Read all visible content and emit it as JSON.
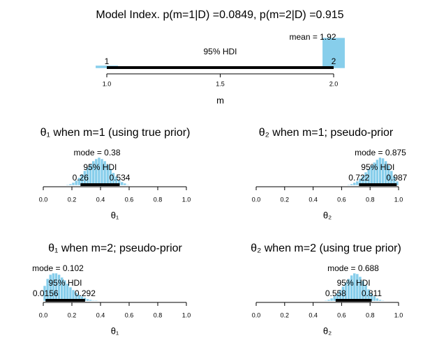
{
  "chart_data": [
    {
      "type": "histogram",
      "title": "Model Index. p(m=1|D) =0.0849, p(m=2|D) =0.915",
      "xlabel": "m",
      "bins": [
        0.95,
        1.05,
        1.15,
        1.25,
        1.35,
        1.45,
        1.55,
        1.65,
        1.75,
        1.85,
        1.95,
        2.05
      ],
      "counts": [
        0.0849,
        0,
        0,
        0,
        0,
        0,
        0,
        0,
        0,
        0,
        0.915
      ],
      "color": "#87ceeb",
      "xlim": [
        1,
        2
      ],
      "xticks": [
        {
          "value": 1,
          "label": "1.0"
        },
        1.5,
        {
          "value": 2,
          "label": "2.0"
        }
      ],
      "ylim": [
        0,
        1
      ],
      "hdi": [
        1,
        2
      ],
      "hdi_label": "95% HDI",
      "center_label": "mean = 1.92"
    },
    {
      "type": "histogram",
      "title": "θ₁ when m=1 (using true prior)",
      "xlabel": "θ₁",
      "bins": [
        0.16,
        0.18,
        0.2,
        0.22,
        0.24,
        0.26,
        0.28,
        0.3,
        0.32,
        0.34,
        0.36,
        0.38,
        0.4,
        0.42,
        0.44,
        0.46,
        0.48,
        0.5,
        0.52,
        0.54,
        0.56,
        0.58,
        0.6
      ],
      "counts": [
        1,
        2,
        4,
        7,
        11,
        16,
        21,
        26,
        31,
        35,
        38,
        40,
        38,
        35,
        30,
        24,
        18,
        13,
        8,
        5,
        3,
        1
      ],
      "color": "#87ceeb",
      "xlim": [
        0,
        1
      ],
      "xticks": [
        {
          "value": 0,
          "label": "0.0"
        },
        0.2,
        0.4,
        0.6,
        0.8,
        {
          "value": 1,
          "label": "1.0"
        }
      ],
      "ylim": [
        0,
        40
      ],
      "hdi": [
        0.26,
        0.534
      ],
      "hdi_label": "95% HDI",
      "center_label": "mode = 0.38"
    },
    {
      "type": "histogram",
      "title": "θ₂ when m=1; pseudo-prior",
      "xlabel": "θ₂",
      "bins": [
        0.64,
        0.66,
        0.68,
        0.7,
        0.72,
        0.74,
        0.76,
        0.78,
        0.8,
        0.82,
        0.84,
        0.86,
        0.88,
        0.9,
        0.92,
        0.94,
        0.96,
        0.98,
        1.0
      ],
      "counts": [
        1,
        2,
        4,
        6,
        10,
        14,
        19,
        24,
        29,
        33,
        37,
        40,
        39,
        35,
        29,
        21,
        13,
        6
      ],
      "color": "#87ceeb",
      "xlim": [
        0,
        1
      ],
      "xticks": [
        {
          "value": 0,
          "label": "0.0"
        },
        0.2,
        0.4,
        0.6,
        0.8,
        {
          "value": 1,
          "label": "1.0"
        }
      ],
      "ylim": [
        0,
        40
      ],
      "hdi": [
        0.722,
        0.987
      ],
      "hdi_label": "95% HDI",
      "center_label": "mode = 0.875"
    },
    {
      "type": "histogram",
      "title": "θ₁ when m=2; pseudo-prior",
      "xlabel": "θ₁",
      "bins": [
        0,
        0.02,
        0.04,
        0.06,
        0.08,
        0.1,
        0.12,
        0.14,
        0.16,
        0.18,
        0.2,
        0.22,
        0.24,
        0.26,
        0.28,
        0.3,
        0.32,
        0.34,
        0.36,
        0.38,
        0.4
      ],
      "counts": [
        22,
        32,
        38,
        40,
        40,
        38,
        34,
        30,
        25,
        20,
        16,
        12,
        9,
        7,
        5,
        3,
        2,
        1,
        1,
        0
      ],
      "color": "#87ceeb",
      "xlim": [
        0,
        1
      ],
      "xticks": [
        {
          "value": 0,
          "label": "0.0"
        },
        0.2,
        0.4,
        0.6,
        0.8,
        {
          "value": 1,
          "label": "1.0"
        }
      ],
      "ylim": [
        0,
        40
      ],
      "hdi": [
        0.0156,
        0.292
      ],
      "hdi_label": "95% HDI",
      "center_label": "mode = 0.102"
    },
    {
      "type": "histogram",
      "title": "θ₂ when m=2 (using true prior)",
      "xlabel": "θ₂",
      "bins": [
        0.48,
        0.5,
        0.52,
        0.54,
        0.56,
        0.58,
        0.6,
        0.62,
        0.64,
        0.66,
        0.68,
        0.7,
        0.72,
        0.74,
        0.76,
        0.78,
        0.8,
        0.82,
        0.84,
        0.86,
        0.88,
        0.9
      ],
      "counts": [
        1,
        2,
        4,
        7,
        11,
        16,
        21,
        27,
        32,
        37,
        40,
        39,
        35,
        29,
        23,
        17,
        11,
        7,
        4,
        2,
        1
      ],
      "color": "#87ceeb",
      "xlim": [
        0,
        1
      ],
      "xticks": [
        {
          "value": 0,
          "label": "0.0"
        },
        0.2,
        0.4,
        0.6,
        0.8,
        {
          "value": 1,
          "label": "1.0"
        }
      ],
      "ylim": [
        0,
        40
      ],
      "hdi": [
        0.558,
        0.811
      ],
      "hdi_label": "95% HDI",
      "center_label": "mode = 0.688"
    }
  ]
}
